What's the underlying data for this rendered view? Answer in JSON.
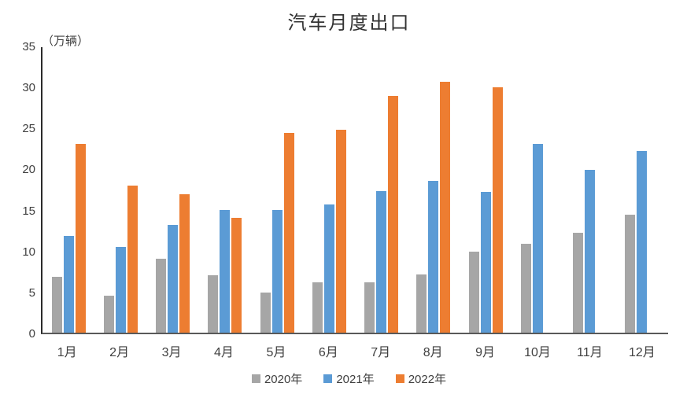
{
  "chart_data": {
    "type": "bar",
    "title": "汽车月度出口",
    "unit_label": "（万辆）",
    "categories": [
      "1月",
      "2月",
      "3月",
      "4月",
      "5月",
      "6月",
      "7月",
      "8月",
      "9月",
      "10月",
      "11月",
      "12月"
    ],
    "series": [
      {
        "name": "2020年",
        "color": "#A6A6A6",
        "values": [
          6.8,
          4.5,
          9.1,
          7.0,
          4.9,
          6.2,
          6.2,
          7.1,
          9.9,
          10.9,
          12.2,
          14.5
        ]
      },
      {
        "name": "2021年",
        "color": "#5B9BD5",
        "values": [
          11.9,
          10.5,
          13.2,
          15.0,
          15.0,
          15.7,
          17.4,
          18.6,
          17.3,
          23.1,
          20.0,
          22.3
        ]
      },
      {
        "name": "2022年",
        "color": "#ED7D31",
        "values": [
          23.1,
          18.0,
          17.0,
          14.1,
          24.5,
          24.9,
          29.0,
          30.8,
          30.1,
          null,
          null,
          null
        ]
      }
    ],
    "xlabel": "",
    "ylabel": "",
    "ylim": [
      0,
      35
    ],
    "yticks": [
      0,
      5,
      10,
      15,
      20,
      25,
      30,
      35
    ],
    "grid": false,
    "legend_position": "bottom"
  }
}
